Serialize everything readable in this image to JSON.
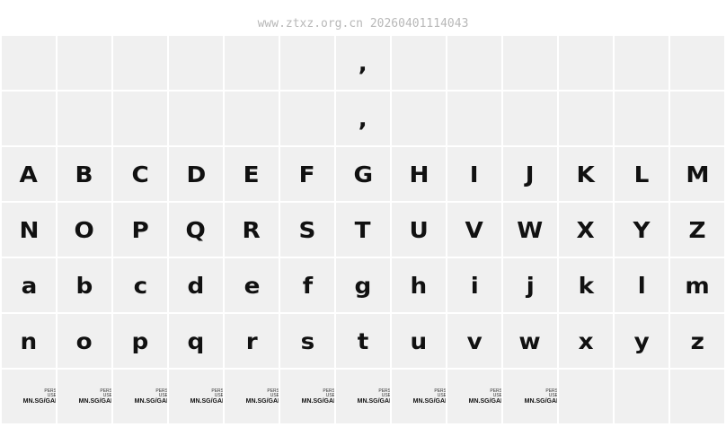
{
  "watermark": "www.ztxz.org.cn 20260401114043",
  "rows": [
    [
      "",
      "",
      "",
      "",
      "",
      "",
      ",",
      "",
      "",
      "",
      "",
      "",
      ""
    ],
    [
      "",
      "",
      "",
      "",
      "",
      "",
      ",",
      "",
      "",
      "",
      "",
      "",
      ""
    ],
    [
      "A",
      "B",
      "C",
      "D",
      "E",
      "F",
      "G",
      "H",
      "I",
      "J",
      "K",
      "L",
      "M"
    ],
    [
      "N",
      "O",
      "P",
      "Q",
      "R",
      "S",
      "T",
      "U",
      "V",
      "W",
      "X",
      "Y",
      "Z"
    ],
    [
      "a",
      "b",
      "c",
      "d",
      "e",
      "f",
      "g",
      "h",
      "i",
      "j",
      "k",
      "l",
      "m"
    ],
    [
      "n",
      "o",
      "p",
      "q",
      "r",
      "s",
      "t",
      "u",
      "v",
      "w",
      "x",
      "y",
      "z"
    ]
  ],
  "logo_row": {
    "count": 10,
    "columns": 13,
    "line1": "PERS",
    "line2": "USE",
    "main": "MN.SG/GAI"
  }
}
